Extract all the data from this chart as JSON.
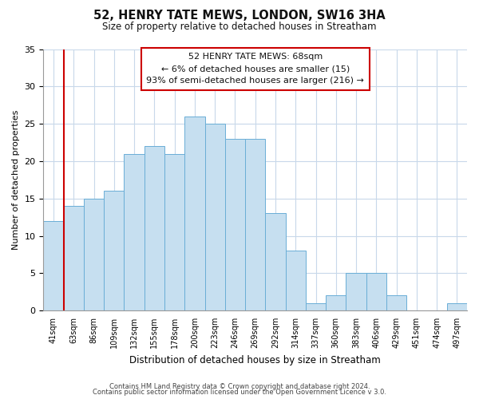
{
  "title": "52, HENRY TATE MEWS, LONDON, SW16 3HA",
  "subtitle": "Size of property relative to detached houses in Streatham",
  "xlabel": "Distribution of detached houses by size in Streatham",
  "ylabel": "Number of detached properties",
  "footer_line1": "Contains HM Land Registry data © Crown copyright and database right 2024.",
  "footer_line2": "Contains public sector information licensed under the Open Government Licence v 3.0.",
  "bar_labels": [
    "41sqm",
    "63sqm",
    "86sqm",
    "109sqm",
    "132sqm",
    "155sqm",
    "178sqm",
    "200sqm",
    "223sqm",
    "246sqm",
    "269sqm",
    "292sqm",
    "314sqm",
    "337sqm",
    "360sqm",
    "383sqm",
    "406sqm",
    "429sqm",
    "451sqm",
    "474sqm",
    "497sqm"
  ],
  "bar_values": [
    12,
    14,
    15,
    16,
    21,
    22,
    21,
    26,
    25,
    23,
    23,
    13,
    8,
    1,
    2,
    5,
    5,
    2,
    0,
    0,
    1
  ],
  "bar_color": "#c6dff0",
  "bar_edge_color": "#6aaed6",
  "ylim": [
    0,
    35
  ],
  "yticks": [
    0,
    5,
    10,
    15,
    20,
    25,
    30,
    35
  ],
  "marker_color": "#cc0000",
  "annotation_title": "52 HENRY TATE MEWS: 68sqm",
  "annotation_line1": "← 6% of detached houses are smaller (15)",
  "annotation_line2": "93% of semi-detached houses are larger (216) →",
  "annotation_box_color": "#ffffff",
  "annotation_box_edge": "#cc0000",
  "background_color": "#ffffff",
  "grid_color": "#c8d8ea"
}
